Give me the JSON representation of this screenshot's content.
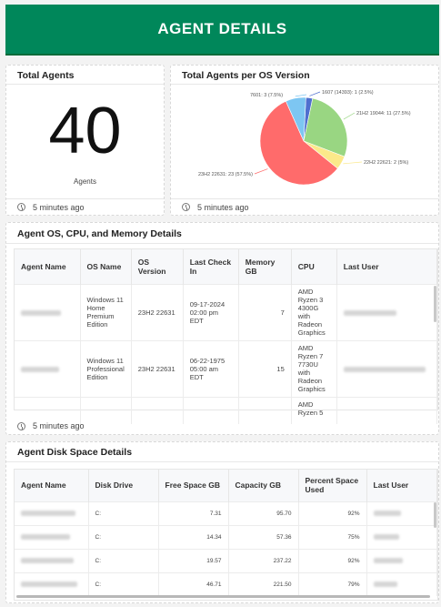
{
  "header": {
    "title": "AGENT DETAILS"
  },
  "total_agents": {
    "title": "Total Agents",
    "value": "40",
    "label": "Agents",
    "updated": "5 minutes ago"
  },
  "os_chart": {
    "title": "Total Agents per OS Version",
    "updated": "5 minutes ago"
  },
  "chart_data": {
    "type": "pie",
    "title": "Total Agents per OS Version",
    "slices": [
      {
        "label": "1607 (14393): 1 (2.5%)",
        "name": "1607 (14393)",
        "value": 1,
        "percent": 2.5,
        "color": "#4f6fcf"
      },
      {
        "label": "21H2 19044: 11 (27.5%)",
        "name": "21H2 19044",
        "value": 11,
        "percent": 27.5,
        "color": "#99d682"
      },
      {
        "label": "22H2 22621: 2 (5%)",
        "name": "22H2 22621",
        "value": 2,
        "percent": 5,
        "color": "#fbe98a"
      },
      {
        "label": "23H2 22631: 23 (57.5%)",
        "name": "23H2 22631",
        "value": 23,
        "percent": 57.5,
        "color": "#ff6b6b"
      },
      {
        "label": "7601: 3 (7.5%)",
        "name": "7601",
        "value": 3,
        "percent": 7.5,
        "color": "#7dc6f2"
      }
    ]
  },
  "os_cpu_table": {
    "title": "Agent OS, CPU, and Memory Details",
    "columns": [
      "Agent Name",
      "OS Name",
      "OS Version",
      "Last Check In",
      "Memory GB",
      "CPU",
      "Last User"
    ],
    "rows": [
      {
        "os_name": "Windows 11 Home Premium Edition",
        "os_version": "23H2 22631",
        "last_check_in": "09-17-2024 02:00 pm EDT",
        "memory": "7",
        "cpu": "AMD Ryzen 3 4300G with Radeon Graphics"
      },
      {
        "os_name": "Windows 11 Professional Edition",
        "os_version": "23H2 22631",
        "last_check_in": "06-22-1975 05:00 am EDT",
        "memory": "15",
        "cpu": "AMD Ryzen 7 7730U with Radeon Graphics"
      },
      {
        "os_name": "",
        "os_version": "",
        "last_check_in": "",
        "memory": "",
        "cpu": "AMD Ryzen 5"
      }
    ],
    "updated": "5 minutes ago"
  },
  "disk_table": {
    "title": "Agent Disk Space Details",
    "columns": [
      "Agent Name",
      "Disk Drive",
      "Free Space GB",
      "Capacity GB",
      "Percent Space Used",
      "Last User"
    ],
    "rows": [
      {
        "drive": "C:",
        "free": "7.31",
        "capacity": "95.70",
        "used": "92%"
      },
      {
        "drive": "C:",
        "free": "14.34",
        "capacity": "57.36",
        "used": "75%"
      },
      {
        "drive": "C:",
        "free": "19.57",
        "capacity": "237.22",
        "used": "92%"
      },
      {
        "drive": "C:",
        "free": "46.71",
        "capacity": "221.50",
        "used": "79%"
      }
    ]
  }
}
